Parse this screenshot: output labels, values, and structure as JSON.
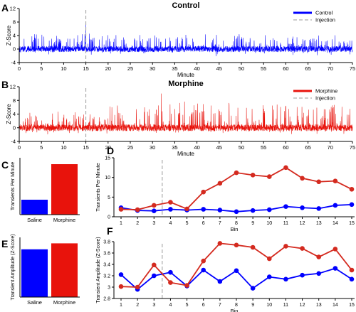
{
  "panel_labels": [
    "A",
    "B",
    "C",
    "D",
    "E",
    "F"
  ],
  "colors": {
    "control": "#0000ff",
    "morphine": "#e8130c",
    "morphine_marker": "#d42a1f",
    "injection": "#9a9a9a",
    "axis": "#000000"
  },
  "chart_data": [
    {
      "panel": "A",
      "type": "line",
      "title": "Control",
      "xlabel": "Minute",
      "ylabel": "Z-Score",
      "xlim": [
        0,
        75
      ],
      "ylim": [
        -4,
        12
      ],
      "x_ticks": [
        0,
        5,
        10,
        15,
        20,
        25,
        30,
        35,
        40,
        45,
        50,
        55,
        60,
        65,
        70,
        75
      ],
      "y_ticks": [
        -4,
        0,
        4,
        8,
        12
      ],
      "legend": {
        "placement": "top-right",
        "entries": [
          "Control",
          "Injection"
        ]
      },
      "injection_minute": 15,
      "series": [
        {
          "name": "Control",
          "color": "#0000ff",
          "baseline": 0,
          "noise_sd": 0.8,
          "typical_peak": 4,
          "max_peak": 7.5,
          "max_peak_minute": 15
        }
      ]
    },
    {
      "panel": "B",
      "type": "line",
      "title": "Morphine",
      "xlabel": "Minute",
      "ylabel": "Z-Score",
      "xlim": [
        0,
        75
      ],
      "ylim": [
        -4,
        12
      ],
      "x_ticks": [
        0,
        5,
        10,
        15,
        20,
        25,
        30,
        35,
        40,
        45,
        50,
        55,
        60,
        65,
        70,
        75
      ],
      "y_ticks": [
        -4,
        0,
        4,
        8,
        12
      ],
      "legend": {
        "placement": "top-right",
        "entries": [
          "Morphine",
          "Injection"
        ]
      },
      "injection_minute": 15,
      "series": [
        {
          "name": "Morphine",
          "color": "#e8130c",
          "baseline": 0,
          "noise_sd": 0.9,
          "typical_peak_before": 4,
          "typical_peak_after": 7,
          "max_peak": 10,
          "max_peak_minute": 32
        }
      ]
    },
    {
      "panel": "C",
      "type": "bar",
      "ylabel": "Transients Per Minute",
      "categories": [
        "Saline",
        "Morphine"
      ],
      "values": [
        2.1,
        7.1
      ],
      "colors": [
        "#0000ff",
        "#e8130c"
      ],
      "ylim": [
        0,
        8
      ]
    },
    {
      "panel": "D",
      "type": "line",
      "xlabel": "Bin",
      "ylabel": "Transients Per Minute",
      "x": [
        1,
        2,
        3,
        4,
        5,
        6,
        7,
        8,
        9,
        10,
        11,
        12,
        13,
        14,
        15
      ],
      "x_ticks": [
        1,
        2,
        3,
        4,
        5,
        6,
        7,
        8,
        9,
        10,
        11,
        12,
        13,
        14,
        15
      ],
      "ylim": [
        0,
        15
      ],
      "y_ticks": [
        0,
        5,
        10,
        15
      ],
      "injection_bin": 3.5,
      "series": [
        {
          "name": "Saline",
          "color": "#0000ff",
          "values": [
            2.3,
            1.6,
            1.5,
            1.9,
            1.7,
            1.9,
            1.7,
            1.3,
            1.6,
            1.8,
            2.6,
            2.3,
            2.1,
            2.9,
            3.1
          ]
        },
        {
          "name": "Morphine",
          "color": "#d42a1f",
          "values": [
            1.9,
            1.8,
            2.9,
            3.7,
            2.0,
            6.3,
            8.5,
            11.2,
            10.6,
            10.2,
            12.5,
            9.8,
            8.9,
            9.1,
            7.0
          ]
        }
      ]
    },
    {
      "panel": "E",
      "type": "bar",
      "ylabel": "Transient Amplitude (Z-Score)",
      "categories": [
        "Saline",
        "Morphine"
      ],
      "values": [
        3.2,
        3.6
      ],
      "colors": [
        "#0000ff",
        "#e8130c"
      ],
      "ylim": [
        0,
        4
      ]
    },
    {
      "panel": "F",
      "type": "line",
      "xlabel": "Bin",
      "ylabel": "Transient Amplitude (Z-Score)",
      "x": [
        1,
        2,
        3,
        4,
        5,
        6,
        7,
        8,
        9,
        10,
        11,
        12,
        13,
        14,
        15
      ],
      "x_ticks": [
        1,
        2,
        3,
        4,
        5,
        6,
        7,
        8,
        9,
        10,
        11,
        12,
        13,
        14,
        15
      ],
      "ylim": [
        2.8,
        3.8
      ],
      "y_ticks": [
        2.8,
        3.0,
        3.2,
        3.4,
        3.6,
        3.8
      ],
      "y_tick_labels": [
        "2.8",
        "3",
        "3.2",
        "3.4",
        "3.6",
        "3.8"
      ],
      "injection_bin": 3.5,
      "series": [
        {
          "name": "Saline",
          "color": "#0000ff",
          "values": [
            3.22,
            2.96,
            3.2,
            3.26,
            3.02,
            3.3,
            3.1,
            3.29,
            2.98,
            3.18,
            3.14,
            3.21,
            3.24,
            3.33,
            3.14
          ]
        },
        {
          "name": "Morphine",
          "color": "#d42a1f",
          "values": [
            3.01,
            3.0,
            3.39,
            3.08,
            3.03,
            3.46,
            3.77,
            3.74,
            3.7,
            3.5,
            3.72,
            3.68,
            3.53,
            3.67,
            3.3
          ]
        }
      ]
    }
  ]
}
